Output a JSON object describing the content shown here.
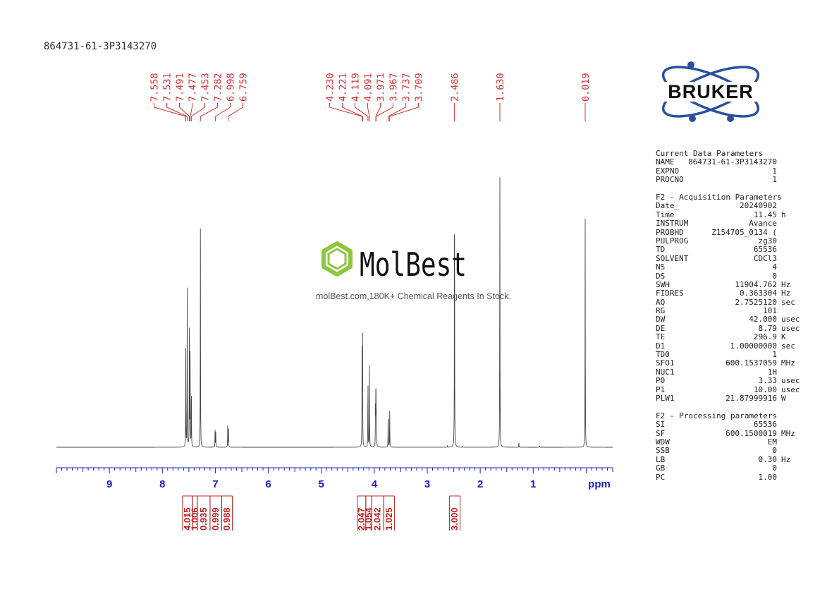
{
  "sample_id": "864731-61-3P3143270",
  "brand": {
    "logo_text": "BRUKER",
    "watermark_name": "MolBest",
    "watermark_tagline": "molBest.com,180K+ Chemical Reagents In Stock.",
    "watermark_color": "#8dc63f",
    "logo_color": "#2a4f9e"
  },
  "colors": {
    "peak_labels": "#d03030",
    "integrals": "#c02020",
    "axis": "#1a1fc0",
    "spectrum": "#444444"
  },
  "chart_data": {
    "type": "line",
    "xlabel": "ppm",
    "xlim": [
      10.0,
      -0.5
    ],
    "x_ticks": [
      9,
      8,
      7,
      6,
      5,
      4,
      3,
      2,
      1
    ],
    "axis_reversed": true,
    "peak_labels": [
      "7.558",
      "7.531",
      "7.491",
      "7.477",
      "7.453",
      "7.282",
      "6.998",
      "6.759",
      "4.230",
      "4.221",
      "4.119",
      "4.091",
      "3.971",
      "3.967",
      "3.737",
      "3.709",
      "2.486",
      "1.630",
      "0.019"
    ],
    "label_groups": [
      {
        "labels": [
          "7.558",
          "7.531",
          "7.491",
          "7.477",
          "7.453",
          "7.282",
          "6.998",
          "6.759"
        ]
      },
      {
        "labels": [
          "4.230",
          "4.221",
          "4.119",
          "4.091",
          "3.971",
          "3.967",
          "3.737",
          "3.709"
        ]
      },
      {
        "labels": [
          "2.486"
        ]
      },
      {
        "labels": [
          "1.630"
        ]
      },
      {
        "labels": [
          "0.019"
        ]
      }
    ],
    "peaks": [
      {
        "ppm": 7.558,
        "intensity": 0.32
      },
      {
        "ppm": 7.531,
        "intensity": 0.53
      },
      {
        "ppm": 7.491,
        "intensity": 0.39
      },
      {
        "ppm": 7.477,
        "intensity": 0.36
      },
      {
        "ppm": 7.453,
        "intensity": 0.22
      },
      {
        "ppm": 7.282,
        "intensity": 0.72
      },
      {
        "ppm": 7.005,
        "intensity": 0.06
      },
      {
        "ppm": 6.992,
        "intensity": 0.05
      },
      {
        "ppm": 6.766,
        "intensity": 0.07
      },
      {
        "ppm": 6.753,
        "intensity": 0.06
      },
      {
        "ppm": 4.23,
        "intensity": 0.36
      },
      {
        "ppm": 4.221,
        "intensity": 0.35
      },
      {
        "ppm": 4.119,
        "intensity": 0.24
      },
      {
        "ppm": 4.091,
        "intensity": 0.27
      },
      {
        "ppm": 3.978,
        "intensity": 0.12
      },
      {
        "ppm": 3.971,
        "intensity": 0.14
      },
      {
        "ppm": 3.967,
        "intensity": 0.14
      },
      {
        "ppm": 3.96,
        "intensity": 0.11
      },
      {
        "ppm": 3.737,
        "intensity": 0.13
      },
      {
        "ppm": 3.709,
        "intensity": 0.12
      },
      {
        "ppm": 2.486,
        "intensity": 1.0
      },
      {
        "ppm": 2.33,
        "intensity": 0.004
      },
      {
        "ppm": 2.62,
        "intensity": 0.004
      },
      {
        "ppm": 1.63,
        "intensity": 0.96
      },
      {
        "ppm": 1.27,
        "intensity": 0.015
      },
      {
        "ppm": 0.88,
        "intensity": 0.005
      },
      {
        "ppm": 0.019,
        "intensity": 0.75
      }
    ],
    "integrals": [
      {
        "value": "4.015",
        "from": 7.62,
        "to": 7.43
      },
      {
        "value": "1.006",
        "from": 7.43,
        "to": 7.34
      },
      {
        "value": "0.935",
        "from": 7.34,
        "to": 7.1
      },
      {
        "value": "0.999",
        "from": 7.1,
        "to": 6.88
      },
      {
        "value": "0.988",
        "from": 6.88,
        "to": 6.68
      },
      {
        "value": "2.047",
        "from": 4.32,
        "to": 4.16
      },
      {
        "value": "1.054",
        "from": 4.16,
        "to": 4.05
      },
      {
        "value": "2.042",
        "from": 4.05,
        "to": 3.82
      },
      {
        "value": "1.025",
        "from": 3.82,
        "to": 3.62
      },
      {
        "value": "3.000",
        "from": 2.58,
        "to": 2.38
      }
    ]
  },
  "parameters": [
    {
      "header": "Current Data Parameters",
      "rows": [
        {
          "name": "NAME",
          "value": "864731-61-3P3143270",
          "unit": ""
        },
        {
          "name": "EXPNO",
          "value": "1",
          "unit": ""
        },
        {
          "name": "PROCNO",
          "value": "1",
          "unit": ""
        }
      ]
    },
    {
      "header": "F2 - Acquisition Parameters",
      "rows": [
        {
          "name": "Date_",
          "value": "20240902",
          "unit": ""
        },
        {
          "name": "Time",
          "value": "11.45",
          "unit": "h"
        },
        {
          "name": "INSTRUM",
          "value": "Avance",
          "unit": ""
        },
        {
          "name": "PROBHD",
          "value": "Z154705_0134 (",
          "unit": ""
        },
        {
          "name": "PULPROG",
          "value": "zg30",
          "unit": ""
        },
        {
          "name": "TD",
          "value": "65536",
          "unit": ""
        },
        {
          "name": "SOLVENT",
          "value": "CDCl3",
          "unit": ""
        },
        {
          "name": "NS",
          "value": "4",
          "unit": ""
        },
        {
          "name": "DS",
          "value": "0",
          "unit": ""
        },
        {
          "name": "SWH",
          "value": "11904.762",
          "unit": "Hz"
        },
        {
          "name": "FIDRES",
          "value": "0.363304",
          "unit": "Hz"
        },
        {
          "name": "AQ",
          "value": "2.7525120",
          "unit": "sec"
        },
        {
          "name": "RG",
          "value": "101",
          "unit": ""
        },
        {
          "name": "DW",
          "value": "42.000",
          "unit": "usec"
        },
        {
          "name": "DE",
          "value": "8.79",
          "unit": "usec"
        },
        {
          "name": "TE",
          "value": "296.9",
          "unit": "K"
        },
        {
          "name": "D1",
          "value": "1.00000000",
          "unit": "sec"
        },
        {
          "name": "TD0",
          "value": "1",
          "unit": ""
        },
        {
          "name": "SFO1",
          "value": "600.1537059",
          "unit": "MHz"
        },
        {
          "name": "NUC1",
          "value": "1H",
          "unit": ""
        },
        {
          "name": "P0",
          "value": "3.33",
          "unit": "usec"
        },
        {
          "name": "P1",
          "value": "10.00",
          "unit": "usec"
        },
        {
          "name": "PLW1",
          "value": "21.87999916",
          "unit": "W"
        }
      ]
    },
    {
      "header": "F2 - Processing parameters",
      "rows": [
        {
          "name": "SI",
          "value": "65536",
          "unit": ""
        },
        {
          "name": "SF",
          "value": "600.1500019",
          "unit": "MHz"
        },
        {
          "name": "WDW",
          "value": "EM",
          "unit": ""
        },
        {
          "name": "SSB",
          "value": "0",
          "unit": ""
        },
        {
          "name": "LB",
          "value": "0.30",
          "unit": "Hz"
        },
        {
          "name": "GB",
          "value": "0",
          "unit": ""
        },
        {
          "name": "PC",
          "value": "1.00",
          "unit": ""
        }
      ]
    }
  ]
}
